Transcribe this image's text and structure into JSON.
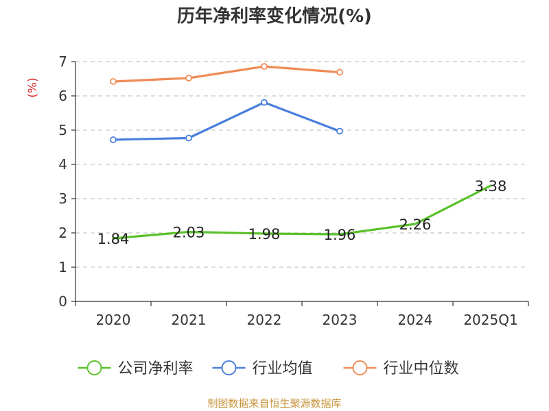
{
  "chart_data": {
    "type": "line",
    "title": "历年净利率变化情况(%)",
    "ylabel": "(%)",
    "xlabel": "",
    "categories": [
      "2020",
      "2021",
      "2022",
      "2023",
      "2024",
      "2025Q1"
    ],
    "ylim": [
      0,
      7
    ],
    "yticks": [
      0,
      1,
      2,
      3,
      4,
      5,
      6,
      7
    ],
    "grid": true,
    "legend_position": "bottom",
    "series": [
      {
        "name": "公司净利率",
        "color": "#5ac12a",
        "values": [
          1.84,
          2.03,
          1.98,
          1.96,
          2.26,
          3.38
        ],
        "labels": [
          "1.84",
          "2.03",
          "1.98",
          "1.96",
          "2.26",
          "3.38"
        ],
        "show_markers": false,
        "show_labels": true
      },
      {
        "name": "行业均值",
        "color": "#4a7fdc",
        "values": [
          4.72,
          4.77,
          5.81,
          4.97,
          null,
          null
        ],
        "show_markers": true,
        "show_labels": false
      },
      {
        "name": "行业中位数",
        "color": "#f08b55",
        "values": [
          6.42,
          6.52,
          6.86,
          6.69,
          null,
          null
        ],
        "show_markers": true,
        "show_labels": false
      }
    ]
  },
  "source": "制图数据来自恒生聚源数据库"
}
